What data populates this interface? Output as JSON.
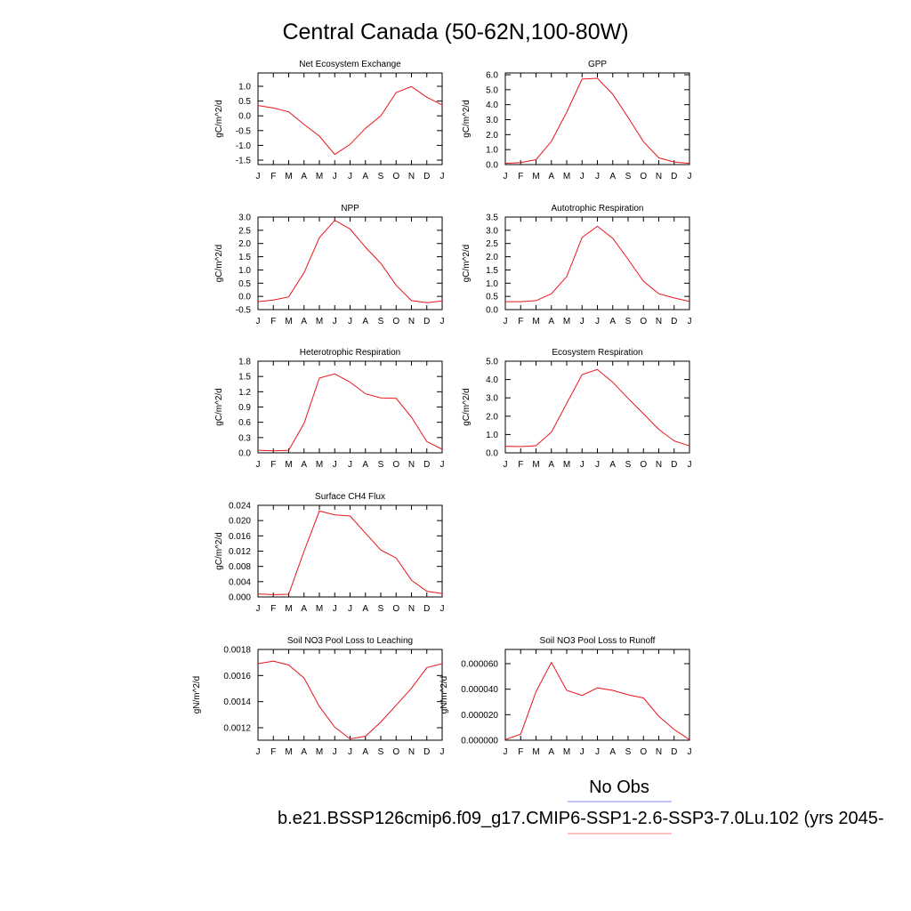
{
  "page": {
    "title": "Central Canada (50-62N,100-80W)",
    "legend": {
      "obs_label": "No Obs",
      "obs_color": "#8080ff",
      "model_label": "b.e21.BSSP126cmip6.f09_g17.CMIP6-SSP1-2.6-SSP3-7.0Lu.102 (yrs 2045-",
      "model_color": "#ff8080"
    },
    "line_color": "#e8141c"
  },
  "chart_data": [
    {
      "type": "line",
      "title": "Net Ecosystem Exchange",
      "ylabel": "gC/m^2/d",
      "x": [
        "J",
        "F",
        "M",
        "A",
        "M",
        "J",
        "J",
        "A",
        "S",
        "O",
        "N",
        "D",
        "J"
      ],
      "ylim": [
        -1.6,
        1.3
      ],
      "yticks": [
        "1.0",
        "0.5",
        "0.0",
        "-0.5",
        "-1.0",
        "-1.5"
      ],
      "values": [
        0.27,
        0.19,
        0.07,
        -0.33,
        -0.7,
        -1.28,
        -0.96,
        -0.45,
        -0.06,
        0.68,
        0.87,
        0.53,
        0.29
      ]
    },
    {
      "type": "line",
      "title": "GPP",
      "ylabel": "gC/m^2/d",
      "x": [
        "J",
        "F",
        "M",
        "A",
        "M",
        "J",
        "J",
        "A",
        "S",
        "O",
        "N",
        "D",
        "J"
      ],
      "ylim": [
        0.0,
        6.0
      ],
      "yticks": [
        "6.0",
        "5.0",
        "4.0",
        "3.0",
        "2.0",
        "1.0",
        "0.0"
      ],
      "values": [
        0.08,
        0.13,
        0.32,
        1.52,
        3.43,
        5.6,
        5.65,
        4.6,
        3.09,
        1.5,
        0.44,
        0.17,
        0.08
      ]
    },
    {
      "type": "line",
      "title": "NPP",
      "ylabel": "gC/m^2/d",
      "x": [
        "J",
        "F",
        "M",
        "A",
        "M",
        "J",
        "J",
        "A",
        "S",
        "O",
        "N",
        "D",
        "J"
      ],
      "ylim": [
        -0.5,
        3.0
      ],
      "yticks": [
        "3.0",
        "2.5",
        "2.0",
        "1.5",
        "1.0",
        "0.5",
        "0.0",
        "-0.5"
      ],
      "values": [
        -0.2,
        -0.14,
        -0.02,
        0.9,
        2.22,
        2.88,
        2.55,
        1.86,
        1.25,
        0.42,
        -0.16,
        -0.24,
        -0.17
      ]
    },
    {
      "type": "line",
      "title": "Autotrophic Respiration",
      "ylabel": "gC/m^2/d",
      "x": [
        "J",
        "F",
        "M",
        "A",
        "M",
        "J",
        "J",
        "A",
        "S",
        "O",
        "N",
        "D",
        "J"
      ],
      "ylim": [
        0.0,
        3.5
      ],
      "yticks": [
        "3.5",
        "3.0",
        "2.5",
        "2.0",
        "1.5",
        "1.0",
        "0.5",
        "0.0"
      ],
      "values": [
        0.3,
        0.3,
        0.34,
        0.6,
        1.25,
        2.73,
        3.15,
        2.7,
        1.9,
        1.07,
        0.6,
        0.44,
        0.31
      ]
    },
    {
      "type": "line",
      "title": "Heterotrophic Respiration",
      "ylabel": "gC/m^2/d",
      "x": [
        "J",
        "F",
        "M",
        "A",
        "M",
        "J",
        "J",
        "A",
        "S",
        "O",
        "N",
        "D",
        "J"
      ],
      "ylim": [
        0.0,
        1.8
      ],
      "yticks": [
        "1.8",
        "1.5",
        "1.2",
        "0.9",
        "0.6",
        "0.3",
        "0.0"
      ],
      "values": [
        0.05,
        0.04,
        0.05,
        0.58,
        1.47,
        1.55,
        1.39,
        1.16,
        1.08,
        1.07,
        0.7,
        0.22,
        0.07
      ]
    },
    {
      "type": "line",
      "title": "Ecosystem Respiration",
      "ylabel": "gC/m^2/d",
      "x": [
        "J",
        "F",
        "M",
        "A",
        "M",
        "J",
        "J",
        "A",
        "S",
        "O",
        "N",
        "D",
        "J"
      ],
      "ylim": [
        0.0,
        5.0
      ],
      "yticks": [
        "5.0",
        "4.0",
        "3.0",
        "2.0",
        "1.0",
        "0.0"
      ],
      "values": [
        0.36,
        0.34,
        0.39,
        1.13,
        2.7,
        4.27,
        4.55,
        3.85,
        2.97,
        2.13,
        1.28,
        0.65,
        0.38
      ]
    },
    {
      "type": "line",
      "title": "Surface CH4 Flux",
      "ylabel": "gC/m^2/d",
      "x": [
        "J",
        "F",
        "M",
        "A",
        "M",
        "J",
        "J",
        "A",
        "S",
        "O",
        "N",
        "D",
        "J"
      ],
      "ylim": [
        0.0,
        0.024
      ],
      "yticks": [
        "0.024",
        "0.020",
        "0.016",
        "0.012",
        "0.008",
        "0.004",
        "0.000"
      ],
      "values": [
        0.0008,
        0.0006,
        0.0007,
        0.012,
        0.0225,
        0.0215,
        0.0212,
        0.0167,
        0.0123,
        0.0102,
        0.0044,
        0.0015,
        0.0009
      ]
    },
    {
      "type": "line",
      "title": "Soil NO3 Pool Loss to Leaching",
      "ylabel": "gN/m^2/d",
      "x": [
        "J",
        "F",
        "M",
        "A",
        "M",
        "J",
        "J",
        "A",
        "S",
        "O",
        "N",
        "D",
        "J"
      ],
      "ylim": [
        0.0011,
        0.0018
      ],
      "yticks": [
        "0.0018",
        "0.0016",
        "0.0014",
        "0.0012"
      ],
      "values": [
        0.00169,
        0.00171,
        0.00168,
        0.00158,
        0.00136,
        0.0012,
        0.00111,
        0.00113,
        0.00124,
        0.00137,
        0.0015,
        0.00166,
        0.00169
      ]
    },
    {
      "type": "line",
      "title": "Soil NO3 Pool Loss to Runoff",
      "ylabel": "gN/m^2/d",
      "x": [
        "J",
        "F",
        "M",
        "A",
        "M",
        "J",
        "J",
        "A",
        "S",
        "O",
        "N",
        "D",
        "J"
      ],
      "ylim": [
        0.0,
        7.2e-05
      ],
      "yticks": [
        "0.000060",
        "0.000040",
        "0.000020",
        "0.000000"
      ],
      "values": [
        5e-07,
        4.8e-06,
        3.85e-05,
        6.18e-05,
        3.95e-05,
        3.55e-05,
        4.15e-05,
        3.95e-05,
        3.6e-05,
        3.35e-05,
        1.9e-05,
        8.5e-06,
        5e-07
      ]
    }
  ]
}
